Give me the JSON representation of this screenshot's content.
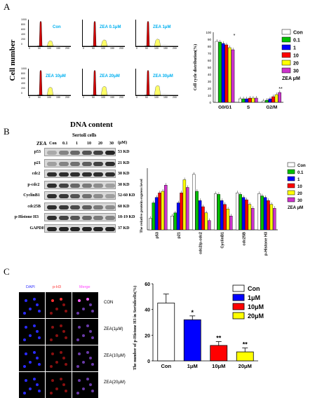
{
  "panels": {
    "a": "A",
    "b": "B",
    "c": "C"
  },
  "panel_a": {
    "flow_labels": [
      "Con",
      "ZEA 0.1μM",
      "ZEA 1μM",
      "ZEA 10μM",
      "ZEA 20μM",
      "ZEA 30μM"
    ],
    "y_axis": "Cell number",
    "x_axis": "DNA content",
    "ytick_labels": [
      "1000",
      "800",
      "600",
      "400",
      "200",
      "0"
    ],
    "xtick_labels": [
      "0",
      "50",
      "100",
      "150",
      "200"
    ]
  },
  "panel_b": {
    "header": "Sertoli cells",
    "zea_label": "ZEA",
    "unit": "(μM)",
    "lanes": [
      "Con",
      "0.1",
      "1",
      "10",
      "20",
      "30"
    ],
    "rows": [
      {
        "protein": "p53",
        "kd": "53 KD",
        "levels": [
          0.25,
          0.45,
          0.6,
          0.7,
          0.8,
          0.95
        ]
      },
      {
        "protein": "p21",
        "kd": "21 KD",
        "levels": [
          0.3,
          0.45,
          0.55,
          0.65,
          0.8,
          0.9
        ]
      },
      {
        "protein": "cdc2",
        "kd": "30 KD",
        "levels": [
          0.9,
          0.9,
          0.9,
          0.9,
          0.9,
          0.9
        ]
      },
      {
        "protein": "p-cdc2",
        "kd": "30 KD",
        "levels": [
          0.9,
          0.8,
          0.6,
          0.5,
          0.4,
          0.3
        ]
      },
      {
        "protein": "CyclinB1",
        "kd": "52-60 KD",
        "levels": [
          0.9,
          0.85,
          0.7,
          0.55,
          0.4,
          0.3
        ]
      },
      {
        "protein": "cdc25B",
        "kd": "60 KD",
        "levels": [
          0.9,
          0.85,
          0.75,
          0.65,
          0.5,
          0.4
        ]
      },
      {
        "protein": "p-Histone H3",
        "kd": "18-19 KD",
        "levels": [
          0.9,
          0.8,
          0.7,
          0.6,
          0.5,
          0.45
        ]
      },
      {
        "protein": "GAPDH",
        "kd": "37 KD",
        "levels": [
          0.95,
          0.95,
          0.95,
          0.95,
          0.95,
          0.95
        ]
      }
    ]
  },
  "panel_c": {
    "channels": [
      "DAPI",
      "p-H3",
      "Merge"
    ],
    "row_labels": [
      "CON",
      "ZEA(1μM)",
      "ZEA(10μM)",
      "ZEA(20μM)"
    ]
  },
  "colors": {
    "con": "#ffffff",
    "c01": "#00c000",
    "c1": "#0000ff",
    "c10": "#ff0000",
    "c20": "#ffff00",
    "c30": "#cc33cc",
    "flow_red": "#d40000",
    "flow_yellow": "#ffff66",
    "label_cyan": "#00b0f0"
  },
  "chart_data": [
    {
      "type": "bar",
      "ylabel": "Cell cycle distribution(%)",
      "categories": [
        "G0/G1",
        "S",
        "G2/M"
      ],
      "ylim": [
        0,
        100
      ],
      "yticks": [
        "100",
        "90",
        "80",
        "70",
        "60",
        "50",
        "40",
        "30",
        "20",
        "10",
        "0"
      ],
      "legend_title": "ZEA μM",
      "legend_position": "right",
      "series": [
        {
          "name": "Con",
          "values": [
            87,
            5,
            2
          ]
        },
        {
          "name": "0.1",
          "values": [
            86,
            5,
            3
          ]
        },
        {
          "name": "1",
          "values": [
            84,
            5,
            5
          ]
        },
        {
          "name": "10",
          "values": [
            82,
            6,
            8
          ]
        },
        {
          "name": "20",
          "values": [
            78,
            6,
            11
          ]
        },
        {
          "name": "30",
          "values": [
            75,
            6,
            14
          ]
        }
      ],
      "annotations": [
        {
          "category": "G0/G1",
          "series": [
            "10",
            "20",
            "30"
          ],
          "text": "*"
        },
        {
          "category": "G2/M",
          "series": [
            "10",
            "20",
            "30"
          ],
          "text": "**"
        }
      ]
    },
    {
      "type": "bar",
      "ylabel": "The relative protein express level",
      "categories": [
        "p53",
        "p21",
        "cdc2/p-cdc2",
        "CyclinB1",
        "cdc25B",
        "p-Histone H3"
      ],
      "ylim": [
        0,
        0.8
      ],
      "legend_title": "ZEA μM",
      "legend_position": "right",
      "series": [
        {
          "name": "Con",
          "values": [
            0.15,
            0.18,
            0.72,
            0.47,
            0.48,
            0.47
          ]
        },
        {
          "name": "0.1",
          "values": [
            0.35,
            0.22,
            0.5,
            0.46,
            0.46,
            0.44
          ]
        },
        {
          "name": "1",
          "values": [
            0.42,
            0.35,
            0.38,
            0.38,
            0.42,
            0.42
          ]
        },
        {
          "name": "10",
          "values": [
            0.48,
            0.48,
            0.3,
            0.33,
            0.39,
            0.38
          ]
        },
        {
          "name": "20",
          "values": [
            0.5,
            0.65,
            0.22,
            0.27,
            0.33,
            0.33
          ]
        },
        {
          "name": "30",
          "values": [
            0.58,
            0.55,
            0.12,
            0.18,
            0.28,
            0.28
          ]
        }
      ]
    },
    {
      "type": "bar",
      "ylabel": "The number of p-Histone H3 in SertolicelIs(%)",
      "categories": [
        "Con",
        "1μM",
        "10μM",
        "20μM"
      ],
      "ylim": [
        0,
        60
      ],
      "yticks": [
        "0",
        "20",
        "40",
        "60"
      ],
      "values": [
        45,
        32,
        12,
        7
      ],
      "errors": [
        7,
        3,
        3,
        3
      ],
      "annotations": [
        "",
        "*",
        "**",
        "**"
      ],
      "legend": [
        "Con",
        "1μM",
        "10μM",
        "20μM"
      ],
      "legend_position": "top-right"
    }
  ]
}
